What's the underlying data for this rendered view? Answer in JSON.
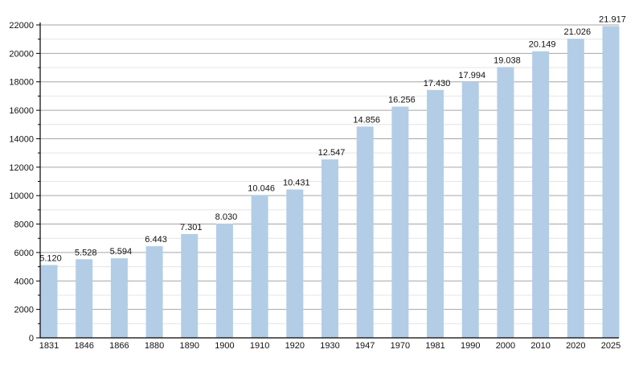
{
  "chart_data": {
    "type": "bar",
    "title": "",
    "xlabel": "",
    "ylabel": "",
    "categories": [
      "1831",
      "1846",
      "1866",
      "1880",
      "1890",
      "1900",
      "1910",
      "1920",
      "1930",
      "1947",
      "1970",
      "1981",
      "1990",
      "2000",
      "2010",
      "2020",
      "2025"
    ],
    "values": [
      5120,
      5528,
      5594,
      6443,
      7301,
      8030,
      10046,
      10431,
      12547,
      14856,
      16256,
      17430,
      17994,
      19038,
      20149,
      21026,
      21917
    ],
    "data_labels": [
      "5.120",
      "5.528",
      "5.594",
      "6.443",
      "7.301",
      "8.030",
      "10.046",
      "10.431",
      "12.547",
      "14.856",
      "16.256",
      "17.430",
      "17.994",
      "19.038",
      "20.149",
      "21.026",
      "21.917"
    ],
    "ylim": [
      0,
      22000
    ],
    "y_ticks": [
      "0",
      "2000",
      "4000",
      "6000",
      "8000",
      "10000",
      "12000",
      "14000",
      "16000",
      "18000",
      "20000",
      "22000"
    ],
    "grid": true,
    "legend": "none",
    "colors": {
      "bar": "#b3cde6",
      "grid_major": "#a6a6a6",
      "grid_minor": "#e4e4e4",
      "axis": "#000000"
    }
  }
}
